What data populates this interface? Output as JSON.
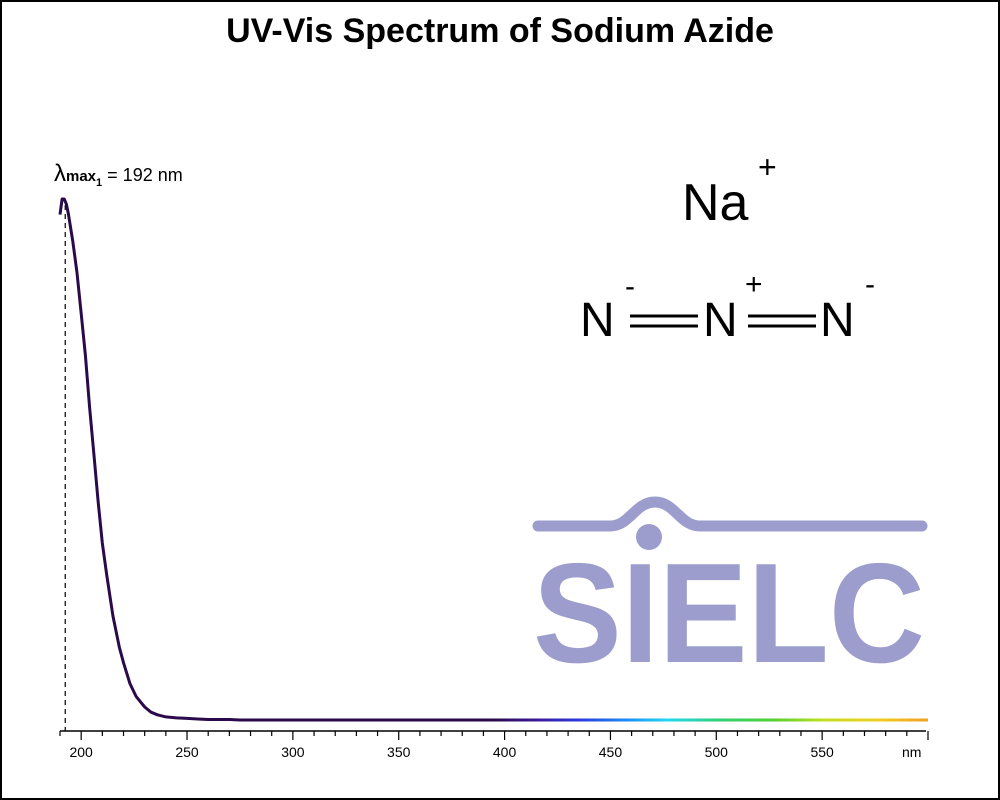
{
  "title": "UV-Vis Spectrum of Sodium Azide",
  "annotation": {
    "lambda_symbol": "λ",
    "max_label": "max",
    "index": "1",
    "text": "= 192 nm",
    "wavelength": 192
  },
  "molecule": {
    "cation": "Na",
    "cation_charge": "+",
    "atoms": [
      "N",
      "N",
      "N"
    ],
    "charges": [
      "-",
      "+",
      "-"
    ]
  },
  "logo": {
    "text": "SIELC",
    "color": "#9c9dcc"
  },
  "colors": {
    "curve": "#2a0a4a",
    "axis": "#000000"
  },
  "chart_data": {
    "type": "line",
    "title": "UV-Vis Spectrum of Sodium Azide",
    "xlabel": "nm",
    "ylabel": "",
    "xlim": [
      190,
      600
    ],
    "ylim": [
      0,
      1
    ],
    "x_ticks": [
      200,
      250,
      300,
      350,
      400,
      450,
      500,
      550
    ],
    "x_unit_label": "nm",
    "grid": false,
    "series": [
      {
        "x": [
          190,
          191,
          192,
          193,
          194,
          196,
          198,
          200,
          202,
          204,
          206,
          208,
          210,
          212,
          215,
          218,
          220,
          223,
          226,
          230,
          233,
          236,
          240,
          245,
          250,
          255,
          260,
          270,
          275,
          280,
          300,
          350,
          400,
          450,
          500,
          550,
          600
        ],
        "y": [
          0.97,
          1.0,
          1.0,
          0.99,
          0.97,
          0.92,
          0.86,
          0.78,
          0.7,
          0.6,
          0.51,
          0.42,
          0.34,
          0.28,
          0.2,
          0.14,
          0.11,
          0.07,
          0.045,
          0.025,
          0.015,
          0.01,
          0.006,
          0.004,
          0.003,
          0.002,
          0.001,
          0.001,
          0.0,
          0.0,
          0.0,
          0.0,
          0.0,
          0.0,
          0.0,
          0.0,
          0.0
        ]
      }
    ]
  }
}
